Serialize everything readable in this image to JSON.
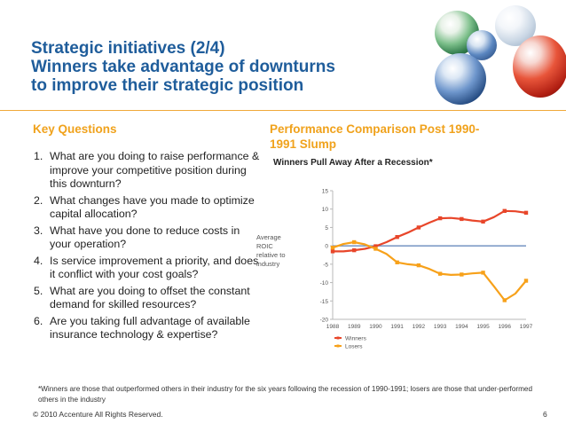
{
  "slide": {
    "title_line1": "Strategic initiatives (2/4)",
    "title_line2": "Winners take advantage of downturns",
    "title_line3": "to improve their strategic position",
    "accent_color": "#f0a21c",
    "title_color": "#1f5d9b"
  },
  "key_questions": {
    "heading": "Key Questions",
    "items": [
      {
        "num": "1.",
        "text": "What are you doing to raise performance & improve your competitive position during this downturn?"
      },
      {
        "num": "2.",
        "text": "What changes have you made to optimize capital allocation?"
      },
      {
        "num": "3.",
        "text": "What have you done to reduce costs in your operation?"
      },
      {
        "num": "4.",
        "text": "Is service improvement a priority, and does it conflict with your cost goals?"
      },
      {
        "num": "5.",
        "text": "What are you doing to offset the constant demand for skilled resources?"
      },
      {
        "num": "6.",
        "text": "Are you taking full advantage of available insurance technology & expertise?"
      }
    ]
  },
  "performance": {
    "heading": "Performance Comparison Post 1990-1991 Slump",
    "subtitle": "Winners Pull Away After a Recession*"
  },
  "chart_data": {
    "type": "line",
    "x": [
      1988,
      1989,
      1990,
      1991,
      1992,
      1993,
      1994,
      1995,
      1996,
      1997
    ],
    "x_labels": [
      "1988",
      "1989",
      "1990",
      "1991",
      "1992",
      "1993",
      "1994",
      "1995",
      "1996",
      "1997"
    ],
    "ylim": [
      -20,
      15
    ],
    "y_ticks": [
      15,
      10,
      5,
      0,
      -5,
      -10,
      -15,
      -20
    ],
    "y_tick_labels": [
      "15",
      "10",
      "5",
      "0",
      "-5",
      "-10",
      "-15",
      "-20"
    ],
    "ylabel_lines": [
      "Average",
      "ROIC",
      "relative to",
      "industry"
    ],
    "baseline": 0,
    "baseline_color": "#7f9cc8",
    "series": [
      {
        "name": "Winners",
        "color": "#e8462a",
        "x": [
          1988,
          1988.5,
          1989,
          1989.5,
          1990,
          1990.5,
          1991,
          1991.5,
          1992,
          1992.5,
          1993,
          1993.5,
          1994,
          1994.5,
          1995,
          1995.5,
          1996,
          1996.5,
          1997
        ],
        "values": [
          -1.5,
          -1.5,
          -1.2,
          -0.8,
          -0.1,
          1.0,
          2.4,
          3.6,
          5.0,
          6.3,
          7.5,
          7.6,
          7.3,
          6.9,
          6.6,
          7.8,
          9.5,
          9.4,
          9.0
        ]
      },
      {
        "name": "Losers",
        "color": "#f7a11a",
        "x": [
          1988,
          1988.5,
          1989,
          1989.5,
          1990,
          1990.5,
          1991,
          1991.5,
          1992,
          1992.5,
          1993,
          1993.5,
          1994,
          1994.5,
          1995,
          1995.5,
          1996,
          1996.5,
          1997
        ],
        "values": [
          -0.5,
          0.5,
          1.0,
          0.4,
          -0.8,
          -2.2,
          -4.5,
          -5.0,
          -5.3,
          -6.3,
          -7.6,
          -7.9,
          -7.8,
          -7.5,
          -7.3,
          -11.0,
          -14.8,
          -13.0,
          -9.5
        ]
      }
    ],
    "legend_placement": "bottom-left"
  },
  "footer": {
    "footnote": "*Winners are those that outperformed others in their industry for the six years following the recession of 1990-1991; losers are those that under-performed others in the industry",
    "copyright": "© 2010 Accenture All Rights Reserved.",
    "page_number": "6"
  }
}
